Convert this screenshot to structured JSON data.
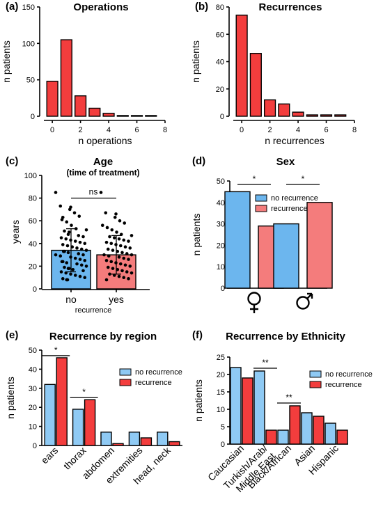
{
  "colors": {
    "red": "#f33d3d",
    "pink": "#f47c7c",
    "blue": "#6cb6ee",
    "blue_light": "#8fcaf4",
    "black": "#000000"
  },
  "chart_data": [
    {
      "panel": "(a)",
      "type": "bar",
      "title": "Operations",
      "xlabel": "n operations",
      "ylabel": "n patients",
      "x": [
        0,
        1,
        2,
        3,
        4,
        5,
        6,
        7
      ],
      "values": [
        48,
        105,
        28,
        11,
        4,
        1,
        1,
        1
      ],
      "xlim": [
        -0.5,
        8
      ],
      "ylim": [
        0,
        150
      ],
      "xticks": [
        "0",
        "2",
        "4",
        "6",
        "8"
      ],
      "yticks": [
        "0",
        "50",
        "100",
        "150"
      ]
    },
    {
      "panel": "(b)",
      "type": "bar",
      "title": "Recurrences",
      "xlabel": "n recurrences",
      "ylabel": "n patients",
      "x": [
        0,
        1,
        2,
        3,
        4,
        5,
        6,
        7
      ],
      "values": [
        74,
        46,
        12,
        9,
        3,
        1,
        1,
        1
      ],
      "xlim": [
        -0.5,
        8
      ],
      "ylim": [
        0,
        80
      ],
      "xticks": [
        "0",
        "2",
        "4",
        "6",
        "8"
      ],
      "yticks": [
        "0",
        "20",
        "40",
        "60",
        "80"
      ]
    },
    {
      "panel": "(c)",
      "type": "bar",
      "title": "Age",
      "subtitle": "(time of treatment)",
      "ylabel": "years",
      "xlabel": "recurrence",
      "categories": [
        "no",
        "yes"
      ],
      "values": [
        34,
        30
      ],
      "errors": [
        19,
        17
      ],
      "ylim": [
        0,
        100
      ],
      "yticks": [
        "0",
        "20",
        "40",
        "60",
        "80",
        "100"
      ],
      "significance": "ns",
      "scatter": [
        [
          85,
          73,
          72,
          70,
          67,
          64,
          63,
          61,
          59,
          56,
          53,
          52,
          51,
          50,
          48,
          47,
          46,
          45,
          44,
          43,
          42,
          41,
          40,
          39,
          38,
          37,
          36,
          35,
          34,
          33,
          33,
          32,
          31,
          30,
          30,
          29,
          28,
          27,
          26,
          25,
          24,
          24,
          23,
          22,
          21,
          20,
          19,
          18,
          18,
          17,
          16,
          15,
          14,
          13,
          12,
          11,
          10,
          9,
          8,
          8
        ],
        [
          85,
          67,
          66,
          63,
          60,
          58,
          56,
          54,
          52,
          50,
          48,
          47,
          46,
          45,
          44,
          43,
          42,
          41,
          40,
          39,
          38,
          37,
          36,
          35,
          34,
          33,
          32,
          31,
          30,
          30,
          29,
          28,
          27,
          26,
          25,
          24,
          23,
          22,
          21,
          20,
          19,
          18,
          17,
          16,
          15,
          14,
          13,
          12,
          11,
          10,
          9,
          8
        ]
      ]
    },
    {
      "panel": "(d)",
      "type": "bar",
      "title": "Sex",
      "ylabel": "n patients",
      "categories": [
        "♀",
        "♂"
      ],
      "series": [
        {
          "name": "no recurrence",
          "values": [
            45,
            30
          ]
        },
        {
          "name": "recurrence",
          "values": [
            29,
            40
          ]
        }
      ],
      "ylim": [
        0,
        50
      ],
      "yticks": [
        "0",
        "10",
        "20",
        "30",
        "40",
        "50"
      ],
      "significance": [
        "*",
        "*"
      ],
      "legend": "top-right"
    },
    {
      "panel": "(e)",
      "type": "bar",
      "title": "Recurrence by region",
      "ylabel": "n patients",
      "categories": [
        "ears",
        "thorax",
        "abdomen",
        "extremities",
        "head, neck"
      ],
      "series": [
        {
          "name": "no recurrence",
          "values": [
            32,
            19,
            7,
            7,
            7
          ]
        },
        {
          "name": "recurrence",
          "values": [
            46,
            24,
            1,
            4,
            2
          ]
        }
      ],
      "ylim": [
        0,
        50
      ],
      "yticks": [
        "0",
        "10",
        "20",
        "30",
        "40",
        "50"
      ],
      "significance": [
        {
          "over": 0,
          "label": "*"
        },
        {
          "over": 1,
          "label": "*"
        }
      ],
      "legend": "top-right"
    },
    {
      "panel": "(f)",
      "type": "bar",
      "title": "Recurrence by Ethnicity",
      "ylabel": "n patients",
      "categories": [
        "Caucasian",
        "Turkish/Arab/\nMiddle East",
        "Black/African",
        "Asian",
        "Hispanic"
      ],
      "series": [
        {
          "name": "no recurrence",
          "values": [
            22,
            21,
            4,
            9,
            6
          ]
        },
        {
          "name": "recurrence",
          "values": [
            19,
            4,
            11,
            8,
            4
          ]
        }
      ],
      "ylim": [
        0,
        25
      ],
      "yticks": [
        "0",
        "5",
        "10",
        "15",
        "20",
        "25"
      ],
      "significance": [
        {
          "over": 1,
          "label": "**"
        },
        {
          "over": 2,
          "label": "**"
        }
      ],
      "legend": "top-right"
    }
  ]
}
